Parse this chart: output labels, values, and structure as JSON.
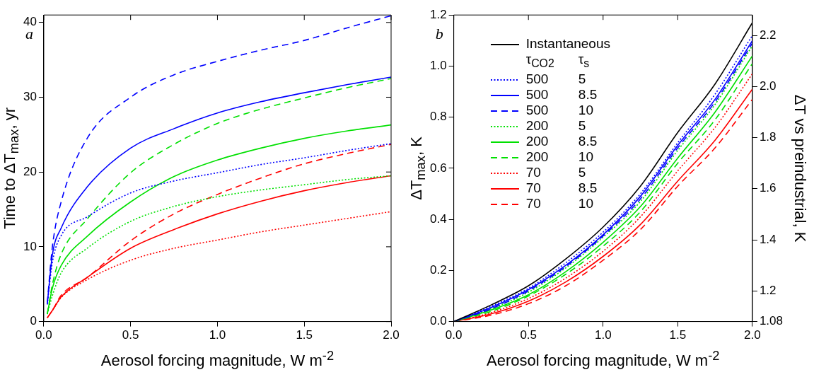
{
  "chart_data": [
    {
      "type": "line",
      "xlabel": "Aerosol forcing magnitude, W m$^{-2}$",
      "ylabel": "Time to ΔT$_{max}$, yr",
      "annotations": [
        "a"
      ],
      "x": [
        0.02,
        0.05,
        0.1,
        0.25,
        0.5,
        0.75,
        1,
        1.25,
        1.5,
        1.75,
        2
      ],
      "xlim": [
        0,
        2
      ],
      "xticks": [
        {
          "value": 0,
          "label": "0.0"
        },
        {
          "value": 0.5,
          "label": "0.5"
        },
        {
          "value": 1,
          "label": "1.0"
        },
        {
          "value": 1.5,
          "label": "1.5"
        },
        {
          "value": 2,
          "label": "2.0"
        }
      ],
      "ylim": [
        0,
        41
      ],
      "yticks": [
        0,
        10,
        20,
        30,
        40
      ],
      "grid": false,
      "legend": false,
      "marker": "none",
      "series": [
        {
          "color": "#0000ff",
          "line_style": "dotted",
          "values": [
            2.3,
            8,
            11.5,
            14,
            17.2,
            18.8,
            19.9,
            21,
            21.9,
            22.9,
            23.8
          ]
        },
        {
          "color": "#0000ff",
          "line_style": "solid",
          "values": [
            2.3,
            9,
            12.5,
            18,
            23.2,
            25.8,
            27.9,
            29.4,
            30.6,
            31.7,
            32.7
          ]
        },
        {
          "color": "#0000ff",
          "line_style": "dashed",
          "values": [
            2.5,
            10.1,
            16,
            24.5,
            30,
            33,
            34.8,
            36.3,
            37.6,
            39.3,
            40.9
          ]
        },
        {
          "color": "#00e000",
          "line_style": "dotted",
          "values": [
            1,
            3.5,
            6.5,
            9.8,
            13.4,
            15.4,
            16.7,
            17.6,
            18.3,
            19,
            19.5
          ]
        },
        {
          "color": "#00e000",
          "line_style": "solid",
          "values": [
            1,
            4.5,
            7.5,
            11.4,
            16,
            19.4,
            21.6,
            23.2,
            24.5,
            25.5,
            26.3
          ]
        },
        {
          "color": "#00e000",
          "line_style": "dashed",
          "values": [
            1,
            5,
            9,
            13.7,
            19.9,
            23.7,
            26.5,
            28.4,
            29.9,
            31.3,
            32.5
          ]
        },
        {
          "color": "#ff0000",
          "line_style": "dotted",
          "values": [
            0.5,
            1.5,
            3.2,
            5.6,
            8.2,
            9.8,
            10.9,
            12,
            12.9,
            13.8,
            14.7
          ]
        },
        {
          "color": "#ff0000",
          "line_style": "solid",
          "values": [
            0.5,
            1.5,
            3.3,
            5.9,
            9.8,
            12.3,
            14.4,
            16.1,
            17.5,
            18.6,
            19.5
          ]
        },
        {
          "color": "#ff0000",
          "line_style": "dashed",
          "values": [
            0.5,
            1.5,
            3.5,
            5.9,
            10.8,
            14.4,
            17,
            19.2,
            21.1,
            22.5,
            23.7
          ]
        }
      ]
    },
    {
      "type": "line",
      "xlabel": "Aerosol forcing magnitude, W m$^{-2}$",
      "ylabel": "ΔT$_{max}$, K",
      "y2label": "ΔT vs preindustrial, K",
      "legend_title": "τ$_{CO2}$ τ$_{s}$",
      "annotations": [
        "b"
      ],
      "x": [
        0,
        0.25,
        0.5,
        0.75,
        1,
        1.25,
        1.5,
        1.75,
        2
      ],
      "xlim": [
        0,
        2
      ],
      "xticks": [
        {
          "value": 0,
          "label": "0.0"
        },
        {
          "value": 0.5,
          "label": "0.5"
        },
        {
          "value": 1,
          "label": "1.0"
        },
        {
          "value": 1.5,
          "label": "1.5"
        },
        {
          "value": 2,
          "label": "2.0"
        }
      ],
      "ylim": [
        0,
        1.2
      ],
      "yticks": [
        {
          "value": 0,
          "label": "0.0"
        },
        0.2,
        0.4,
        0.6,
        0.8,
        {
          "value": 1,
          "label": "1.0"
        },
        1.2
      ],
      "y2lim": [
        1.08,
        2.28
      ],
      "y2ticks": [
        1.08,
        1.2,
        1.4,
        1.6,
        1.8,
        {
          "value": 2,
          "label": "2.0"
        },
        2.2
      ],
      "grid": false,
      "legend": "top left",
      "marker": "none",
      "series": [
        {
          "name": "Instantaneous",
          "color": "#000000",
          "line_style": "solid",
          "values": [
            0,
            0.065,
            0.14,
            0.245,
            0.37,
            0.53,
            0.74,
            0.93,
            1.17
          ]
        },
        {
          "name": "500 5",
          "color": "#0000ff",
          "line_style": "dotted",
          "values": [
            0,
            0.06,
            0.13,
            0.23,
            0.35,
            0.5,
            0.7,
            0.89,
            1.12
          ]
        },
        {
          "name": "500 8.5",
          "color": "#0000ff",
          "line_style": "solid",
          "values": [
            0,
            0.055,
            0.125,
            0.22,
            0.34,
            0.49,
            0.69,
            0.87,
            1.1
          ]
        },
        {
          "name": "500 10",
          "color": "#0000ff",
          "line_style": "dashed",
          "values": [
            0,
            0.05,
            0.12,
            0.215,
            0.335,
            0.48,
            0.68,
            0.86,
            1.09
          ]
        },
        {
          "name": "200 5",
          "color": "#00e000",
          "line_style": "dotted",
          "values": [
            0,
            0.05,
            0.115,
            0.21,
            0.33,
            0.47,
            0.67,
            0.85,
            1.08
          ]
        },
        {
          "name": "200 8.5",
          "color": "#00e000",
          "line_style": "solid",
          "values": [
            0,
            0.045,
            0.105,
            0.195,
            0.31,
            0.45,
            0.64,
            0.82,
            1.04
          ]
        },
        {
          "name": "200 10",
          "color": "#00e000",
          "line_style": "dashed",
          "values": [
            0,
            0.04,
            0.1,
            0.185,
            0.295,
            0.43,
            0.62,
            0.79,
            1.01
          ]
        },
        {
          "name": "70 5",
          "color": "#ff0000",
          "line_style": "dotted",
          "values": [
            0,
            0.035,
            0.09,
            0.17,
            0.275,
            0.41,
            0.59,
            0.76,
            0.97
          ]
        },
        {
          "name": "70 8.5",
          "color": "#ff0000",
          "line_style": "solid",
          "values": [
            0,
            0.03,
            0.08,
            0.155,
            0.255,
            0.38,
            0.55,
            0.71,
            0.91
          ]
        },
        {
          "name": "70 10",
          "color": "#ff0000",
          "line_style": "dashed",
          "values": [
            0,
            0.025,
            0.07,
            0.14,
            0.24,
            0.36,
            0.53,
            0.68,
            0.87
          ]
        }
      ]
    }
  ]
}
